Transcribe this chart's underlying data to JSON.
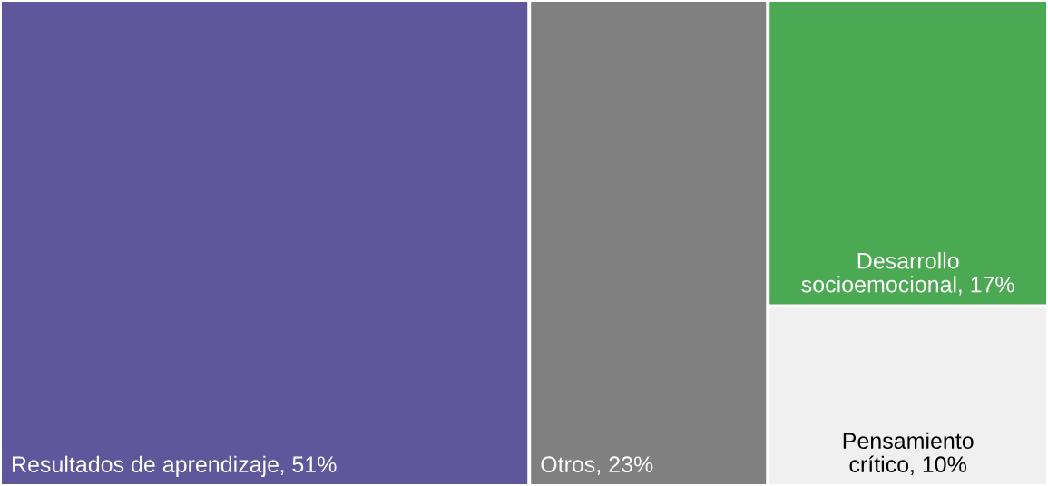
{
  "chart_data": {
    "type": "other",
    "categories": [
      "Resultados de aprendizaje",
      "Otros",
      "Desarrollo socioemocional",
      "Pensamiento crítico"
    ],
    "values": [
      51,
      23,
      17,
      10
    ],
    "value_labels": [
      ", 51%",
      ", 23%",
      ", 17%",
      ", 10%"
    ],
    "colors": [
      "#5e579b",
      "#808080",
      "#4aa952",
      "#f0f0f0"
    ]
  }
}
